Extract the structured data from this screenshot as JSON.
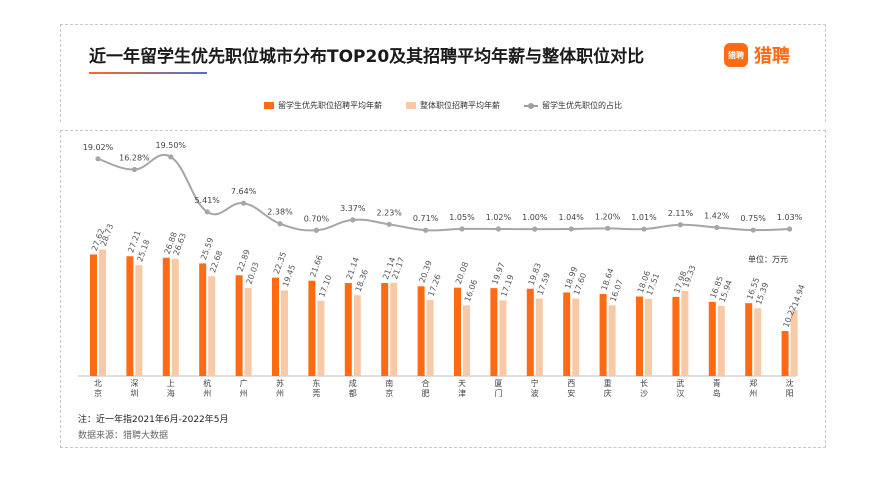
{
  "header": {
    "title": "近一年留学生优先职位城市分布TOP20及其招聘平均年薪与整体职位对比",
    "logo_mark": "猎聘",
    "logo_text": "猎聘"
  },
  "colors": {
    "series1": "#ff6a13",
    "series2": "#f7c9a6",
    "line": "#a6a6a6"
  },
  "chart_data": {
    "type": "bar",
    "title": "近一年留学生优先职位城市分布TOP20及其招聘平均年薪与整体职位对比",
    "unit_label": "单位：万元",
    "categories": [
      "北京",
      "深圳",
      "上海",
      "杭州",
      "广州",
      "苏州",
      "东莞",
      "成都",
      "南京",
      "合肥",
      "天津",
      "厦门",
      "宁波",
      "西安",
      "重庆",
      "长沙",
      "武汉",
      "青岛",
      "郑州",
      "沈阳"
    ],
    "category_labels": [
      [
        "北",
        "京"
      ],
      [
        "深",
        "圳"
      ],
      [
        "上",
        "海"
      ],
      [
        "杭",
        "州"
      ],
      [
        "广",
        "州"
      ],
      [
        "苏",
        "州"
      ],
      [
        "东",
        "莞"
      ],
      [
        "成",
        "都"
      ],
      [
        "南",
        "京"
      ],
      [
        "合",
        "肥"
      ],
      [
        "天",
        "津"
      ],
      [
        "厦",
        "门"
      ],
      [
        "宁",
        "波"
      ],
      [
        "西",
        "安"
      ],
      [
        "重",
        "庆"
      ],
      [
        "长",
        "沙"
      ],
      [
        "武",
        "汉"
      ],
      [
        "青",
        "岛"
      ],
      [
        "郑",
        "州"
      ],
      [
        "沈",
        "阳"
      ]
    ],
    "series": [
      {
        "name": "留学生优先职位招聘平均年薪",
        "type": "bar",
        "values": [
          27.62,
          27.21,
          26.88,
          25.59,
          22.89,
          22.35,
          21.66,
          21.14,
          21.14,
          20.39,
          20.08,
          19.97,
          19.83,
          18.99,
          18.64,
          18.06,
          17.98,
          16.85,
          16.55,
          10.22
        ],
        "labels": [
          "27.62",
          "27.21",
          "26.88",
          "25.59",
          "22.89",
          "22.35",
          "21.66",
          "21.14",
          "21.14",
          "20.39",
          "20.08",
          "19.97",
          "19.83",
          "18.99",
          "18.64",
          "18.06",
          "17.98",
          "16.85",
          "16.55",
          "10.22"
        ]
      },
      {
        "name": "整体职位招聘平均年薪",
        "type": "bar",
        "values": [
          28.73,
          25.18,
          26.63,
          22.68,
          20.03,
          19.45,
          17.1,
          18.36,
          21.17,
          17.26,
          16.06,
          17.19,
          17.59,
          17.6,
          16.07,
          17.51,
          19.33,
          15.94,
          15.39,
          14.94
        ],
        "labels": [
          "28.73",
          "25.18",
          "26.63",
          "22.68",
          "20.03",
          "19.45",
          "17.10",
          "18.36",
          "21.17",
          "17.26",
          "16.06",
          "17.19",
          "17.59",
          "17.60",
          "16.07",
          "17.51",
          "19.33",
          "15.94",
          "15.39",
          "14.94"
        ]
      },
      {
        "name": "留学生优先职位的占比",
        "type": "line",
        "values": [
          19.02,
          16.28,
          19.5,
          5.41,
          7.64,
          2.38,
          0.7,
          3.37,
          2.23,
          0.71,
          1.05,
          1.02,
          1.0,
          1.04,
          1.2,
          1.01,
          2.11,
          1.42,
          0.75,
          1.03
        ],
        "labels": [
          "19.02%",
          "16.28%",
          "19.50%",
          "5.41%",
          "7.64%",
          "2.38%",
          "0.70%",
          "3.37%",
          "2.23%",
          "0.71%",
          "1.05%",
          "1.02%",
          "1.00%",
          "1.04%",
          "1.20%",
          "1.01%",
          "2.11%",
          "1.42%",
          "0.75%",
          "1.03%"
        ]
      }
    ],
    "ylim_bar": [
      0,
      30
    ],
    "ylim_line": [
      0,
      20
    ]
  },
  "footer": {
    "note": "注：近一年指2021年6月-2022年5月",
    "source": "数据来源：猎聘大数据"
  }
}
